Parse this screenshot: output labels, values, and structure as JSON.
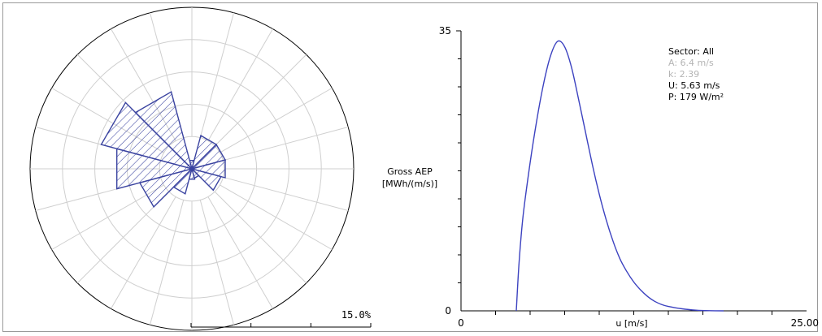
{
  "chart_data": [
    {
      "type": "polar-bar",
      "sectors": 12,
      "sector_center_deg": [
        0,
        30,
        60,
        90,
        120,
        150,
        180,
        210,
        240,
        270,
        300,
        330
      ],
      "values_pct": [
        0.8,
        3.2,
        3.2,
        3.2,
        2.8,
        0.9,
        1.0,
        2.4,
        5.0,
        7.2,
        8.7,
        7.4
      ],
      "scale_pct": 15.0,
      "scale_label": "15.0%",
      "rings_pct": [
        3,
        6,
        9,
        12,
        15
      ],
      "spoke_count": 24,
      "hatch_color": "#3a43a0"
    },
    {
      "type": "line",
      "ylabel": "Gross AEP\n[MWh/(m/s)]",
      "ylabel_lines": [
        "Gross AEP",
        "[MWh/(m/s)]"
      ],
      "xlabel": "u [m/s]",
      "xlim": [
        0,
        25
      ],
      "ylim": [
        0,
        35
      ],
      "x_tick_labels": [
        "0",
        "25.00"
      ],
      "y_tick_labels": [
        "0",
        "35"
      ],
      "x_minor_ticks": [
        2.5,
        5,
        7.5,
        10,
        12.5,
        15,
        17.5,
        20,
        22.5
      ],
      "y_minor_ticks": [
        3.5,
        7,
        10.5,
        14,
        17.5,
        21,
        24.5,
        28,
        31.5
      ],
      "line_color": "#3c42c0",
      "series": [
        {
          "x": [
            4.0,
            4.2,
            4.5,
            5.0,
            5.5,
            6.0,
            6.5,
            7.0,
            7.5,
            8.0,
            8.5,
            9.0,
            9.5,
            10.0,
            10.5,
            11.0,
            11.5,
            12.0,
            12.5,
            13.0,
            13.5,
            14.0,
            14.5,
            15.0,
            16.0,
            17.0,
            18.0,
            19.0
          ],
          "y": [
            0,
            6,
            12,
            18.5,
            24,
            28.6,
            32,
            33.7,
            33,
            30.4,
            26.5,
            22.4,
            18.3,
            14.6,
            11.4,
            8.7,
            6.5,
            4.9,
            3.6,
            2.6,
            1.8,
            1.2,
            0.8,
            0.55,
            0.25,
            0.08,
            0.02,
            0
          ]
        }
      ],
      "stats": {
        "sector": "Sector: All",
        "A": "A: 6.4 m/s",
        "k": "k: 2.39",
        "U": "U: 5.63 m/s",
        "P": "P: 179 W/m²"
      },
      "muted_color": "#b4b4b4"
    }
  ]
}
